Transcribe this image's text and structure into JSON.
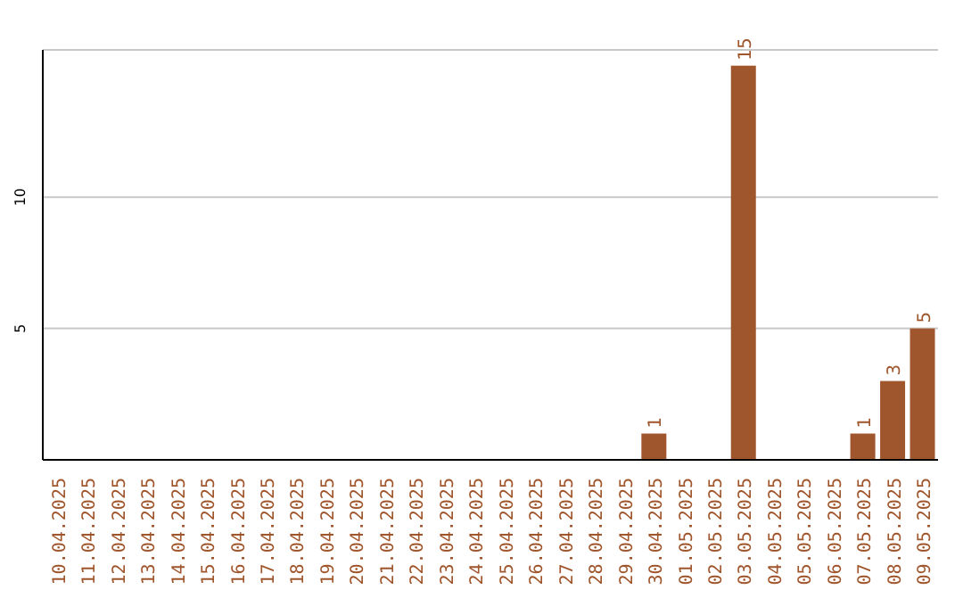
{
  "chart_data": {
    "type": "bar",
    "categories": [
      "10.04.2025",
      "11.04.2025",
      "12.04.2025",
      "13.04.2025",
      "14.04.2025",
      "15.04.2025",
      "16.04.2025",
      "17.04.2025",
      "18.04.2025",
      "19.04.2025",
      "20.04.2025",
      "21.04.2025",
      "22.04.2025",
      "23.04.2025",
      "24.04.2025",
      "25.04.2025",
      "26.04.2025",
      "27.04.2025",
      "28.04.2025",
      "29.04.2025",
      "30.04.2025",
      "01.05.2025",
      "02.05.2025",
      "03.05.2025",
      "04.05.2025",
      "05.05.2025",
      "06.05.2025",
      "07.05.2025",
      "08.05.2025",
      "09.05.2025"
    ],
    "values": [
      0,
      0,
      0,
      0,
      0,
      0,
      0,
      0,
      0,
      0,
      0,
      0,
      0,
      0,
      0,
      0,
      0,
      0,
      0,
      0,
      1,
      0,
      0,
      15,
      0,
      0,
      0,
      1,
      3,
      5
    ],
    "value_labels": [
      null,
      null,
      null,
      null,
      null,
      null,
      null,
      null,
      null,
      null,
      null,
      null,
      null,
      null,
      null,
      null,
      null,
      null,
      null,
      null,
      "1",
      null,
      null,
      "15",
      null,
      null,
      null,
      "1",
      "3",
      "5"
    ],
    "color": "#a0562c",
    "ylim": [
      0,
      15.6
    ],
    "yticks": [
      5,
      10
    ],
    "grid": "y"
  }
}
